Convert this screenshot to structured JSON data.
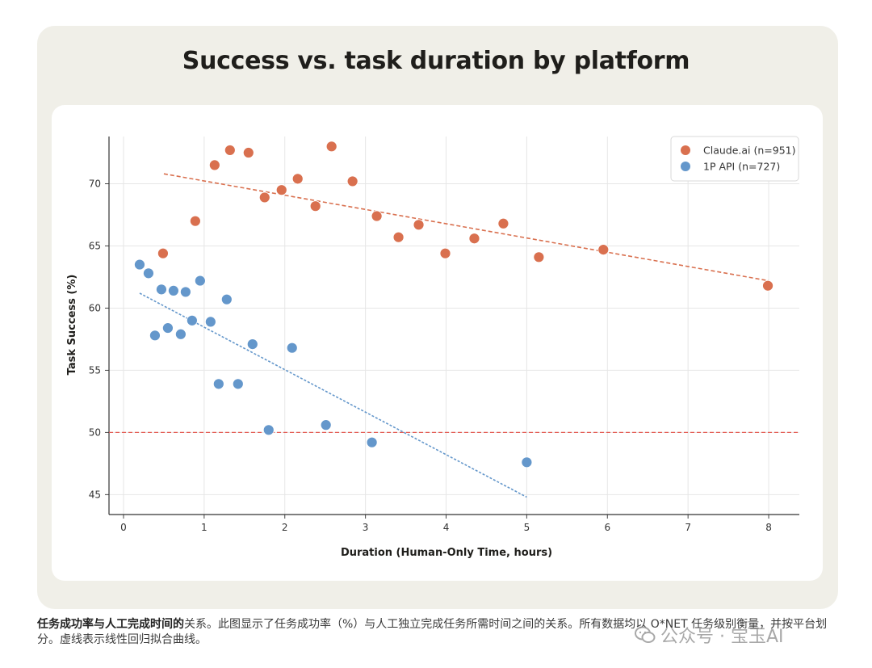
{
  "chart_data": {
    "type": "scatter",
    "title": "Success vs. task duration by platform",
    "xlabel": "Duration (Human-Only Time, hours)",
    "ylabel": "Task Success (%)",
    "xlim": [
      -0.18,
      8.38
    ],
    "ylim": [
      43.4,
      73.8
    ],
    "xticks": [
      0,
      1,
      2,
      3,
      4,
      5,
      6,
      7,
      8
    ],
    "yticks": [
      45,
      50,
      55,
      60,
      65,
      70
    ],
    "grid": true,
    "legend_position": "top-right",
    "reference_line": {
      "y": 50,
      "color": "#e45a52"
    },
    "series": [
      {
        "name": "Claude.ai (n=951)",
        "color": "#d9704f",
        "points": [
          [
            0.49,
            64.4
          ],
          [
            0.89,
            67.0
          ],
          [
            1.13,
            71.5
          ],
          [
            1.32,
            72.7
          ],
          [
            1.55,
            72.5
          ],
          [
            1.75,
            68.9
          ],
          [
            1.96,
            69.5
          ],
          [
            2.16,
            70.4
          ],
          [
            2.38,
            68.2
          ],
          [
            2.58,
            73.0
          ],
          [
            2.84,
            70.2
          ],
          [
            3.14,
            67.4
          ],
          [
            3.41,
            65.7
          ],
          [
            3.66,
            66.7
          ],
          [
            3.99,
            64.4
          ],
          [
            4.35,
            65.6
          ],
          [
            4.71,
            66.8
          ],
          [
            5.15,
            64.1
          ],
          [
            5.95,
            64.7
          ],
          [
            7.99,
            61.8
          ]
        ],
        "trend": {
          "x": [
            0.5,
            8.0
          ],
          "y": [
            70.8,
            62.2
          ]
        }
      },
      {
        "name": "1P API (n=727)",
        "color": "#6497cb",
        "points": [
          [
            0.2,
            63.5
          ],
          [
            0.31,
            62.8
          ],
          [
            0.39,
            57.8
          ],
          [
            0.47,
            61.5
          ],
          [
            0.55,
            58.4
          ],
          [
            0.62,
            61.4
          ],
          [
            0.71,
            57.9
          ],
          [
            0.77,
            61.3
          ],
          [
            0.85,
            59.0
          ],
          [
            0.95,
            62.2
          ],
          [
            1.08,
            58.9
          ],
          [
            1.18,
            53.9
          ],
          [
            1.28,
            60.7
          ],
          [
            1.42,
            53.9
          ],
          [
            1.6,
            57.1
          ],
          [
            1.8,
            50.2
          ],
          [
            2.09,
            56.8
          ],
          [
            2.51,
            50.6
          ],
          [
            3.08,
            49.2
          ],
          [
            5.0,
            47.6
          ]
        ],
        "trend": {
          "x": [
            0.2,
            5.0
          ],
          "y": [
            61.2,
            44.8
          ]
        }
      }
    ]
  },
  "caption": {
    "bold": "任务成功率与人工完成时间的",
    "text": "关系。此图显示了任务成功率（%）与人工独立完成任务所需时间之间的关系。所有数据均以 O*NET 任务级别衡量，并按平台划分。虚线表示线性回归拟合曲线。"
  },
  "watermark": "公众号 · 宝玉AI"
}
